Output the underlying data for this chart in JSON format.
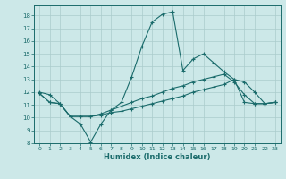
{
  "title": "",
  "xlabel": "Humidex (Indice chaleur)",
  "xlim": [
    -0.5,
    23.5
  ],
  "ylim": [
    8,
    18.8
  ],
  "yticks": [
    8,
    9,
    10,
    11,
    12,
    13,
    14,
    15,
    16,
    17,
    18
  ],
  "xticks": [
    0,
    1,
    2,
    3,
    4,
    5,
    6,
    7,
    8,
    9,
    10,
    11,
    12,
    13,
    14,
    15,
    16,
    17,
    18,
    19,
    20,
    21,
    22,
    23
  ],
  "bg_color": "#cce8e8",
  "line_color": "#1a6b6b",
  "grid_color": "#aacccc",
  "line1_y": [
    12.0,
    11.8,
    11.1,
    10.1,
    9.5,
    8.1,
    9.5,
    10.6,
    11.2,
    13.2,
    15.6,
    17.5,
    18.1,
    18.3,
    13.7,
    14.6,
    15.0,
    14.3,
    13.6,
    13.0,
    12.8,
    12.0,
    11.1,
    11.2
  ],
  "line2_y": [
    11.9,
    11.2,
    11.1,
    10.1,
    10.1,
    10.1,
    10.2,
    10.4,
    10.5,
    10.7,
    10.9,
    11.1,
    11.3,
    11.5,
    11.7,
    12.0,
    12.2,
    12.4,
    12.6,
    13.0,
    11.2,
    11.1,
    11.1,
    11.2
  ],
  "line3_y": [
    11.9,
    11.2,
    11.1,
    10.1,
    10.1,
    10.1,
    10.3,
    10.6,
    10.9,
    11.2,
    11.5,
    11.7,
    12.0,
    12.3,
    12.5,
    12.8,
    13.0,
    13.2,
    13.4,
    12.8,
    11.8,
    11.1,
    11.1,
    11.2
  ]
}
